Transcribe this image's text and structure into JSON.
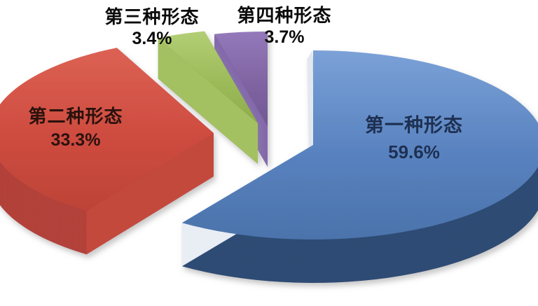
{
  "chart_data": {
    "type": "pie",
    "style": "3d_exploded",
    "title": "",
    "unit": "%",
    "total": 100,
    "start_angle_deg": 270,
    "direction": "clockwise",
    "legend_position": "none",
    "background": "#FFFFFF",
    "labels_on_chart": true,
    "series": [
      {
        "label": "第一种形态",
        "value": 59.6,
        "display": "59.6%",
        "color": "#4F81BD",
        "side_color": "#2F4C74",
        "label_placement": "inside-slice"
      },
      {
        "label": "第二种形态",
        "value": 33.3,
        "display": "33.3%",
        "color": "#C0504D",
        "side_color": "#B2423A",
        "label_placement": "inside-slice"
      },
      {
        "label": "第三种形态",
        "value": 3.4,
        "display": "3.4%",
        "color": "#9BBB59",
        "side_color": "#6C7A33",
        "label_placement": "outside-top"
      },
      {
        "label": "第四种形态",
        "value": 3.7,
        "display": "3.7%",
        "color": "#8064A2",
        "side_color": "#4F356D",
        "label_placement": "outside-top"
      }
    ]
  }
}
